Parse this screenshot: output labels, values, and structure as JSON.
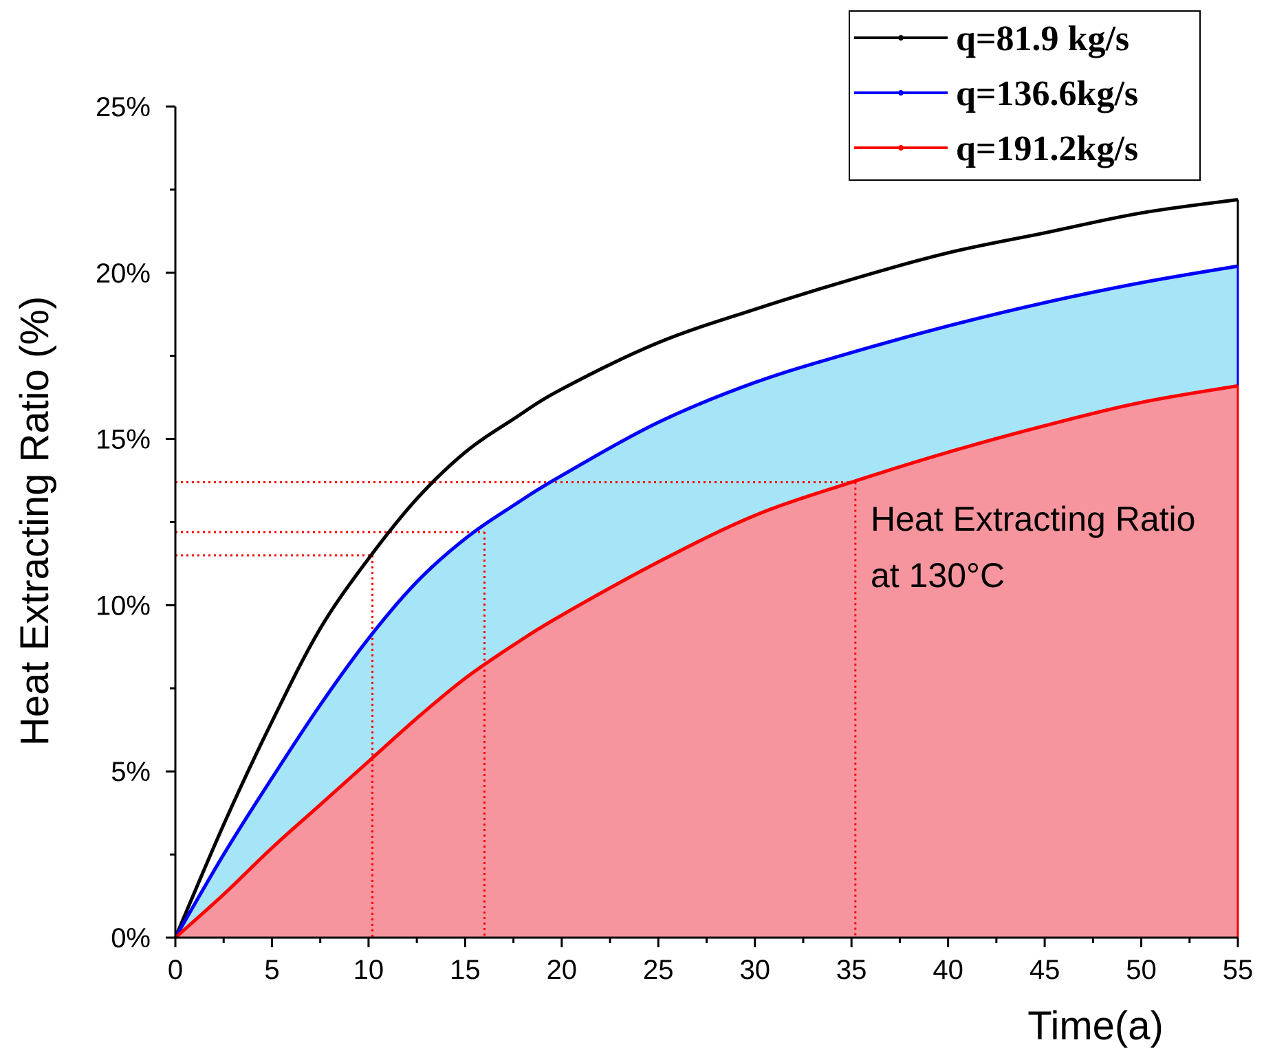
{
  "chart_data": {
    "type": "area",
    "title": "",
    "xlabel": "Time(a)",
    "ylabel": "Heat  Extracting Ratio (%)",
    "xlim": [
      0,
      55
    ],
    "ylim": [
      0,
      25
    ],
    "xticks": [
      0,
      5,
      10,
      15,
      20,
      25,
      30,
      35,
      40,
      45,
      50,
      55
    ],
    "xtick_labels": [
      "0",
      "5",
      "10",
      "15",
      "20",
      "25",
      "30",
      "35",
      "40",
      "45",
      "50",
      "55"
    ],
    "yticks": [
      0,
      5,
      10,
      15,
      20,
      25
    ],
    "ytick_labels": [
      "0%",
      "5%",
      "10%",
      "15%",
      "20%",
      "25%"
    ],
    "grid": false,
    "legend_position": "top-right",
    "series": [
      {
        "name": "q=81.9  kg/s",
        "color": "#000000",
        "fill": "none",
        "x": [
          0,
          2.5,
          5,
          7.5,
          10,
          12.5,
          15,
          17.5,
          20,
          25,
          30,
          35,
          40,
          45,
          50,
          55
        ],
        "y": [
          0,
          3.4,
          6.5,
          9.3,
          11.4,
          13.2,
          14.6,
          15.6,
          16.5,
          17.9,
          18.9,
          19.8,
          20.6,
          21.2,
          21.8,
          22.2
        ]
      },
      {
        "name": "q=136.6kg/s",
        "color": "#0000ff",
        "fill": "#a6e5f7",
        "x": [
          0,
          2.5,
          5,
          7.5,
          10,
          12.5,
          15,
          17.5,
          20,
          25,
          30,
          35,
          40,
          45,
          50,
          55
        ],
        "y": [
          0,
          2.5,
          4.8,
          7.0,
          9.0,
          10.7,
          12.0,
          13.0,
          13.9,
          15.5,
          16.7,
          17.6,
          18.4,
          19.1,
          19.7,
          20.2
        ]
      },
      {
        "name": "q=191.2kg/s",
        "color": "#ff0000",
        "fill": "#f6959d",
        "x": [
          0,
          2.5,
          5,
          7.5,
          10,
          12.5,
          15,
          17.5,
          20,
          25,
          30,
          35,
          40,
          45,
          50,
          55
        ],
        "y": [
          0,
          1.3,
          2.7,
          4.0,
          5.3,
          6.6,
          7.8,
          8.8,
          9.7,
          11.3,
          12.7,
          13.7,
          14.6,
          15.4,
          16.1,
          16.6
        ]
      }
    ],
    "reference_lines": [
      {
        "x": 10.2,
        "y": 11.5
      },
      {
        "x": 16.0,
        "y": 12.2
      },
      {
        "x": 35.2,
        "y": 13.7
      }
    ],
    "reference_color": "#ff0000",
    "annotation": {
      "line1": "Heat  Extracting Ratio",
      "line2": "at 130°C"
    }
  }
}
